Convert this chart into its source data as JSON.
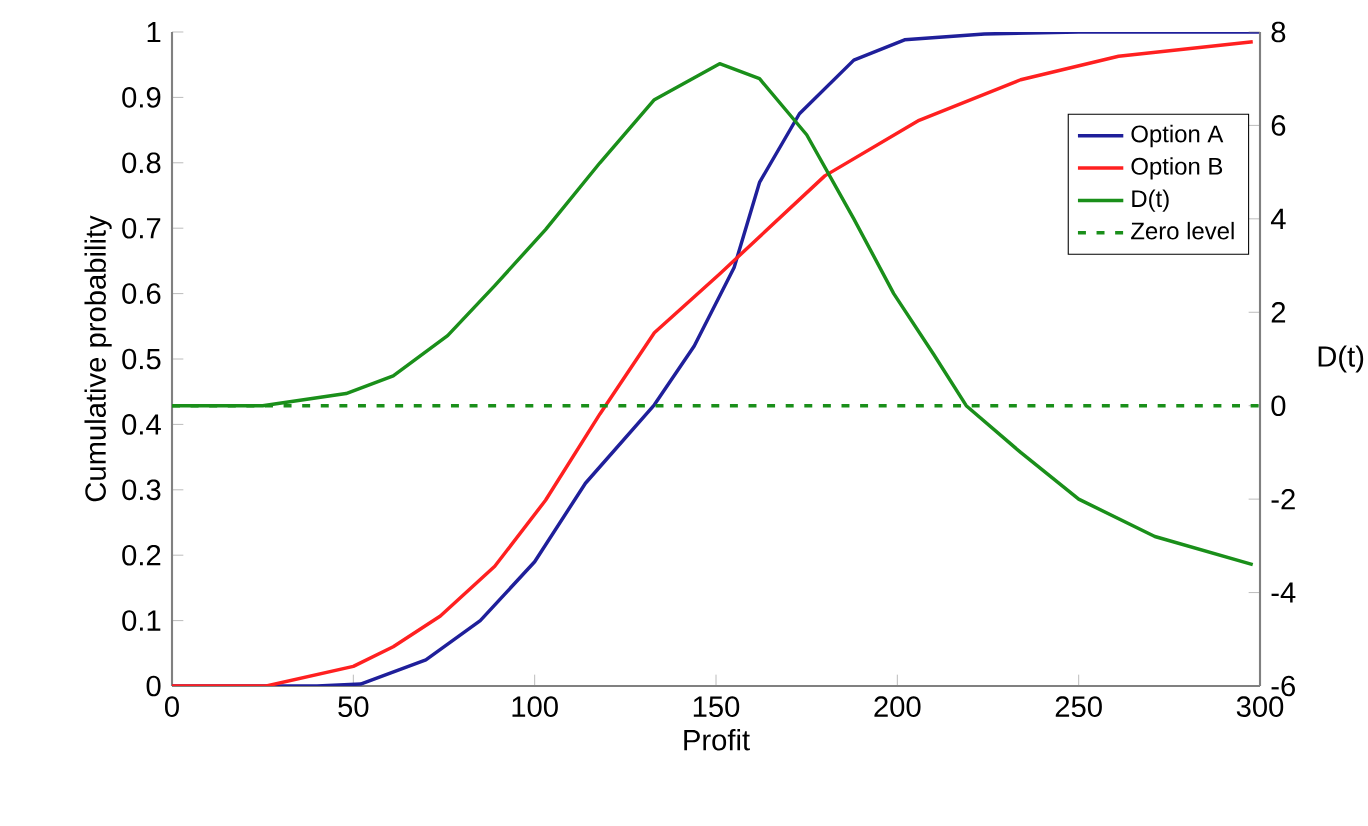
{
  "chart_data": {
    "type": "line",
    "xlabel": "Profit",
    "ylabel": "Cumulative probability",
    "y2label": "D(t)",
    "xlim": [
      0,
      300
    ],
    "xticks": [
      0,
      50,
      100,
      150,
      200,
      250,
      300
    ],
    "ylim": [
      0,
      1
    ],
    "yticks": [
      0,
      0.1,
      0.2,
      0.3,
      0.4,
      0.5,
      0.6,
      0.7,
      0.8,
      0.9,
      1
    ],
    "y2lim": [
      -6,
      8
    ],
    "y2ticks": [
      -6,
      -4,
      -2,
      0,
      2,
      4,
      6,
      8
    ],
    "legend": "top right",
    "grid": false,
    "marker": "none",
    "series": [
      {
        "name": "Option A",
        "color": "#1f1f9a",
        "x": [
          0,
          40,
          52,
          70,
          85,
          100,
          114,
          133,
          144,
          155,
          162,
          173,
          188,
          202,
          224,
          250,
          300
        ],
        "values": [
          0,
          0,
          0.003,
          0.04,
          0.1,
          0.19,
          0.31,
          0.43,
          0.52,
          0.64,
          0.77,
          0.875,
          0.957,
          0.988,
          0.997,
          1,
          1
        ]
      },
      {
        "name": "Option B",
        "color": "#ff2020",
        "x": [
          0,
          26,
          50,
          61,
          74,
          89,
          103,
          118,
          133,
          151,
          180,
          206,
          234,
          261,
          298
        ],
        "values": [
          0,
          0,
          0.03,
          0.06,
          0.107,
          0.183,
          0.284,
          0.416,
          0.54,
          0.63,
          0.78,
          0.865,
          0.927,
          0.963,
          0.985
        ]
      },
      {
        "name": "D(t)",
        "color": "#1a8f1a",
        "axis": "y2",
        "x": [
          0,
          25,
          48,
          61,
          76,
          89,
          103,
          118,
          133,
          151,
          162,
          175,
          188,
          199,
          210,
          219,
          234,
          250,
          271,
          298
        ],
        "values": [
          0,
          0,
          0.26,
          0.64,
          1.5,
          2.57,
          3.77,
          5.2,
          6.55,
          7.32,
          7.0,
          5.8,
          4.0,
          2.4,
          1.1,
          0,
          -1.0,
          -2.0,
          -2.8,
          -3.4
        ]
      },
      {
        "name": "Zero level",
        "color": "#1a8f1a",
        "axis": "y2",
        "line_style": "dashed",
        "x": [
          0,
          300
        ],
        "values": [
          0,
          0
        ]
      }
    ]
  }
}
